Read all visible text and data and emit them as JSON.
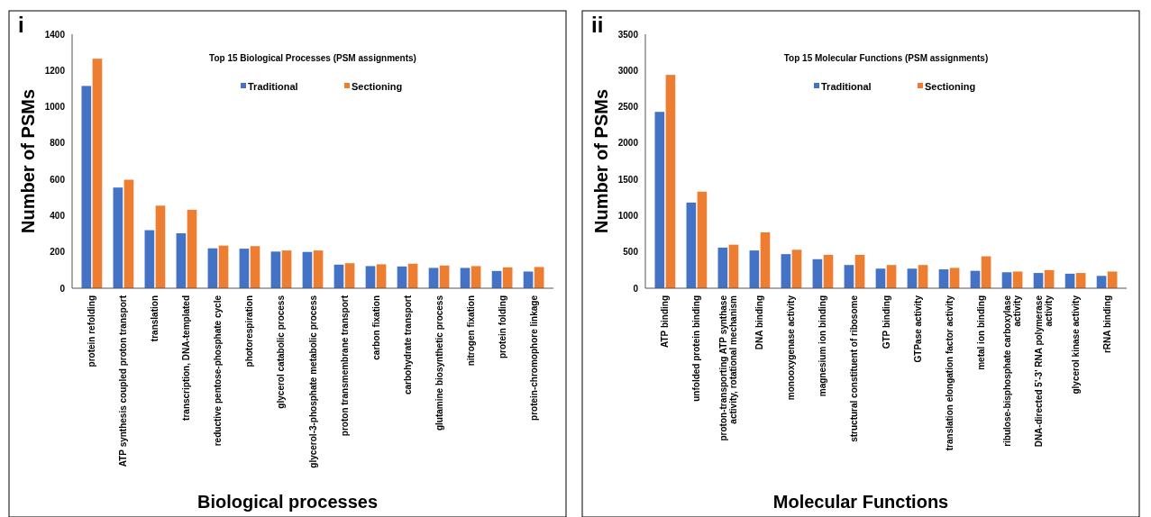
{
  "chart_data": [
    {
      "type": "bar",
      "title": "Top 15 Biological Processes (PSM assignments)",
      "xlabel": "Biological processes",
      "ylabel": "Number of PSMs",
      "annotations": [
        "i"
      ],
      "legend": "top",
      "grid": false,
      "ylim": [
        0,
        1400
      ],
      "yticks": [
        0,
        200,
        400,
        600,
        800,
        1000,
        1200,
        1400
      ],
      "categories": [
        "protein refolding",
        "ATP synthesis coupled proton transport",
        "translation",
        "transcription, DNA-templated",
        "reductive pentose-phosphate cycle",
        "photorespiration",
        "glycerol catabolic process",
        "glycerol-3-phosphate metabolic process",
        "proton transmembrane transport",
        "carbon fixation",
        "carbohydrate transport",
        "glutamine biosynthetic process",
        "nitrogen fixation",
        "protein folding",
        "protein-chromophore linkage"
      ],
      "series": [
        {
          "name": "Traditional",
          "color": "#4472c4",
          "values": [
            1115,
            555,
            320,
            303,
            220,
            218,
            202,
            200,
            130,
            122,
            120,
            112,
            112,
            95,
            92
          ]
        },
        {
          "name": "Sectioning",
          "color": "#ed7d31",
          "values": [
            1265,
            598,
            455,
            432,
            235,
            232,
            208,
            208,
            138,
            132,
            135,
            125,
            122,
            115,
            117
          ]
        }
      ]
    },
    {
      "type": "bar",
      "title": "Top 15 Molecular Functions (PSM assignments)",
      "xlabel": "Molecular Functions",
      "ylabel": "Number of PSMs",
      "annotations": [
        "ii"
      ],
      "legend": "top",
      "grid": false,
      "ylim": [
        0,
        3500
      ],
      "yticks": [
        0,
        500,
        1000,
        1500,
        2000,
        2500,
        3000,
        3500
      ],
      "categories": [
        "ATP binding",
        "unfolded protein binding",
        "proton-transporting ATP synthase activity, rotational mechanism",
        "DNA binding",
        "monooxygenase activity",
        "magnesium ion binding",
        "structural constituent of ribosome",
        "GTP binding",
        "GTPase activity",
        "translation elongation factor activity",
        "metal ion binding",
        "ribulose-bisphosphate carboxylase activity",
        "DNA-directed 5'-3' RNA polymerase activity",
        "glycerol kinase activity",
        "rRNA binding"
      ],
      "series": [
        {
          "name": "Traditional",
          "color": "#4472c4",
          "values": [
            2430,
            1180,
            560,
            520,
            470,
            400,
            320,
            270,
            270,
            260,
            240,
            220,
            210,
            200,
            170
          ]
        },
        {
          "name": "Sectioning",
          "color": "#ed7d31",
          "values": [
            2940,
            1330,
            600,
            770,
            530,
            460,
            460,
            320,
            320,
            280,
            440,
            230,
            250,
            210,
            230
          ]
        }
      ]
    }
  ]
}
